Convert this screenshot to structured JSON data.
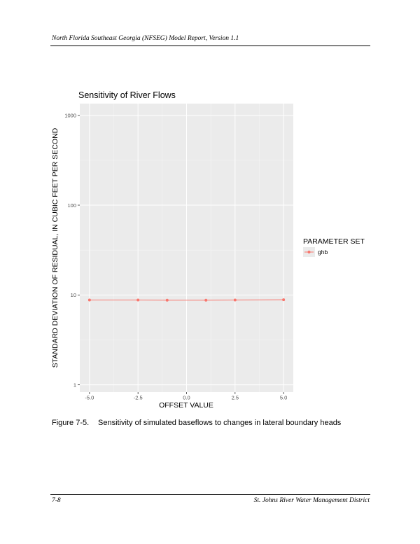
{
  "page": {
    "header": "North Florida Southeast Georgia (NFSEG) Model Report, Version 1.1",
    "footer_left": "7-8",
    "footer_right": "St. Johns River Water Management District"
  },
  "caption": {
    "number": "Figure 7-5.",
    "text": "Sensitivity of simulated baseflows to changes in lateral boundary heads"
  },
  "chart_data": {
    "type": "line",
    "title": "Sensitivity of River Flows",
    "xlabel": "OFFSET VALUE",
    "ylabel": "STANDARD DEVIATION OF RESIDUAL, IN CUBIC FEET PER SECOND",
    "x_ticks": [
      -5.0,
      -2.5,
      0.0,
      2.5,
      5.0
    ],
    "x_tick_labels": [
      "-5.0",
      "-2.5",
      "0.0",
      "2.5",
      "5.0"
    ],
    "y_scale": "log",
    "y_ticks": [
      1,
      10,
      100,
      1000
    ],
    "y_tick_labels": [
      "1",
      "10",
      "100",
      "1000"
    ],
    "xlim": [
      -5.5,
      5.5
    ],
    "ylim": [
      0.83,
      1350
    ],
    "grid": true,
    "legend": {
      "title": "PARAMETER SET",
      "placement": "right"
    },
    "series": [
      {
        "name": "ghb",
        "color": "#f8766d",
        "x": [
          -5.0,
          -2.5,
          -1.0,
          1.0,
          2.5,
          5.0
        ],
        "y": [
          8.8,
          8.8,
          8.75,
          8.75,
          8.8,
          8.85
        ]
      }
    ]
  }
}
